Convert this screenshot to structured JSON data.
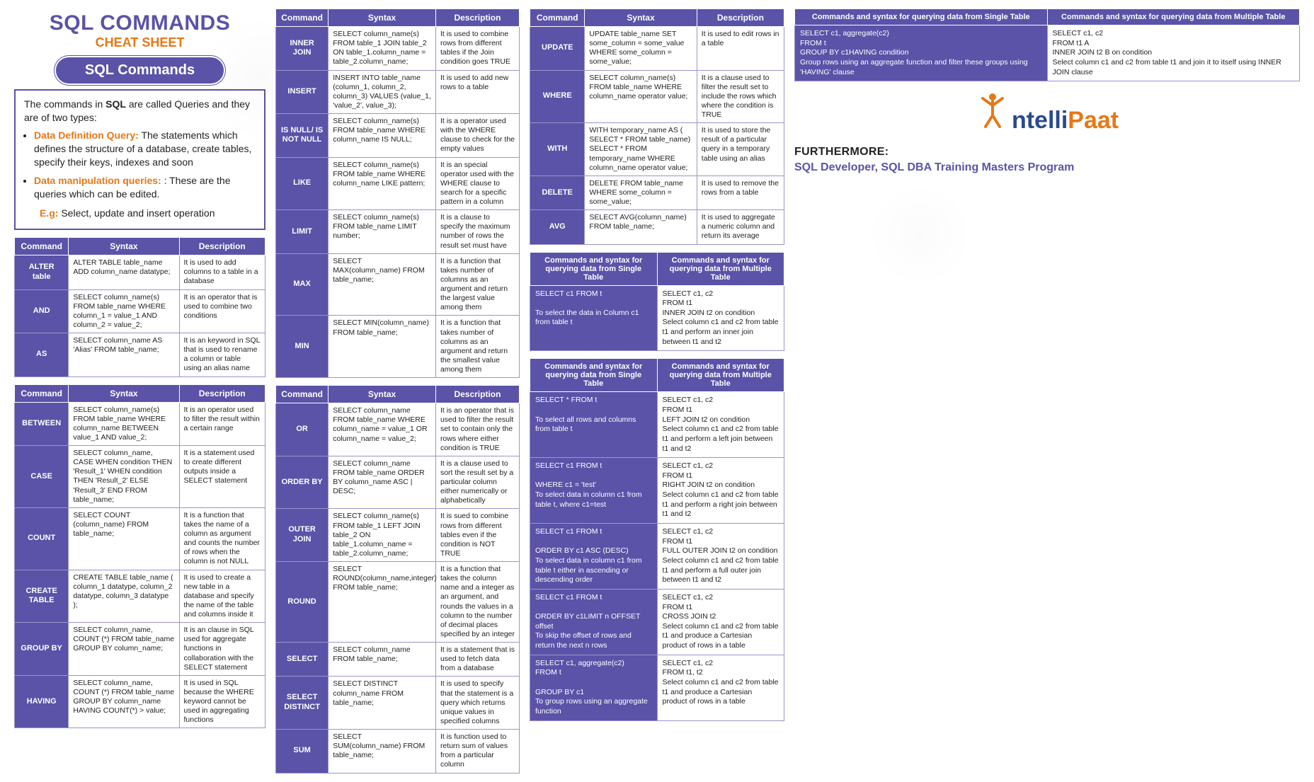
{
  "colors": {
    "purple": "#5a53a8",
    "orange": "#e67817",
    "cell_border": "#9a95cc",
    "background": "#ffffff",
    "text": "#222222",
    "logo_blue": "#2a4a8f"
  },
  "header": {
    "title": "SQL COMMANDS",
    "subtitle": "CHEAT SHEET",
    "pill": "SQL Commands",
    "intro_line": "The commands in SQL are called Queries and they are of two types:",
    "intro_bold_word": "SQL",
    "bullets": [
      {
        "head": "Data Definition Query:",
        "body": "The statements which defines the structure of a database, create tables, specify their keys, indexes and soon"
      },
      {
        "head": "Data manipulation queries:",
        "body": ": These are the queries which can be edited."
      }
    ],
    "eg_label": "E.g:",
    "eg_body": "Select, update and insert operation"
  },
  "cmd_headers": {
    "c1": "Command",
    "c2": "Syntax",
    "c3": "Description"
  },
  "two_col_headers": {
    "single": "Commands and syntax for querying data from Single Table",
    "multiple": "Commands and syntax for querying data from Multiple Table"
  },
  "table_a": [
    {
      "name": "ALTER table",
      "syntax": "ALTER TABLE table_name ADD column_name datatype;",
      "desc": "It is used to add columns to a table in a database"
    },
    {
      "name": "AND",
      "syntax": "SELECT column_name(s) FROM table_name WHERE column_1 = value_1 AND column_2 = value_2;",
      "desc": "It is an operator that is used to combine two conditions"
    },
    {
      "name": "AS",
      "syntax": "SELECT column_name AS 'Alias' FROM table_name;",
      "desc": "It is an keyword in SQL that is used to rename a column or table using an alias name"
    }
  ],
  "table_b": [
    {
      "name": "BETWEEN",
      "syntax": "SELECT column_name(s) FROM table_name WHERE column_name BETWEEN value_1 AND value_2;",
      "desc": "It is an operator used to filter the result within a certain range"
    },
    {
      "name": "CASE",
      "syntax": "SELECT column_name, CASE WHEN condition THEN 'Result_1' WHEN condition THEN 'Result_2' ELSE 'Result_3' END FROM table_name;",
      "desc": "It is a statement used to create different outputs inside a SELECT statement"
    },
    {
      "name": "COUNT",
      "syntax": "SELECT COUNT (column_name) FROM table_name;",
      "desc": "It is a function that takes the name of a column as argument and counts the number of rows when the column is not NULL"
    },
    {
      "name": "CREATE TABLE",
      "syntax": "CREATE TABLE table_name ( column_1 datatype, column_2 datatype, column_3 datatype );",
      "desc": "It is used to create a new table in a database and specify the name of the table and columns inside it"
    },
    {
      "name": "GROUP BY",
      "syntax": "SELECT column_name, COUNT (*) FROM table_name GROUP BY column_name;",
      "desc": "It is an clause in SQL used for aggregate functions in collaboration with the SELECT statement"
    },
    {
      "name": "HAVING",
      "syntax": "SELECT column_name, COUNT (*) FROM table_name GROUP BY column_name HAVING COUNT(*) > value;",
      "desc": "It is used in SQL because the WHERE keyword cannot be used in aggregating functions"
    }
  ],
  "table_c": [
    {
      "name": "INNER JOIN",
      "syntax": "SELECT column_name(s) FROM table_1 JOIN table_2 ON table_1.column_name = table_2.column_name;",
      "desc": "It is used to combine rows from different tables if the Join condition goes TRUE"
    },
    {
      "name": "INSERT",
      "syntax": "INSERT INTO table_name (column_1, column_2, column_3) VALUES (value_1, 'value_2', value_3);",
      "desc": "It is used to add new rows to a table"
    },
    {
      "name": "IS NULL/ IS NOT NULL",
      "syntax": "SELECT column_name(s) FROM table_name WHERE column_name IS NULL;",
      "desc": "It is a operator used with the WHERE clause to check for the empty values"
    },
    {
      "name": "LIKE",
      "syntax": "SELECT column_name(s) FROM table_name WHERE column_name LIKE pattern;",
      "desc": "It is an special operator used with the WHERE clause to search for a specific pattern in a column"
    },
    {
      "name": "LIMIT",
      "syntax": "SELECT column_name(s) FROM table_name LIMIT number;",
      "desc": "It is a clause to specify the maximum number of rows the result set must have"
    },
    {
      "name": "MAX",
      "syntax": "SELECT MAX(column_name) FROM table_name;",
      "desc": "It is a function that takes number of columns as an argument and return the largest value among them"
    },
    {
      "name": "MIN",
      "syntax": "SELECT MIN(column_name) FROM table_name;",
      "desc": "It is a function that takes number of columns as an argument and return the smallest value among them"
    }
  ],
  "table_d": [
    {
      "name": "OR",
      "syntax": "SELECT column_name FROM table_name WHERE column_name = value_1 OR column_name = value_2;",
      "desc": "It is an operator that is used to filter the result set to contain only the rows where either condition is TRUE"
    },
    {
      "name": "ORDER BY",
      "syntax": "SELECT column_name FROM table_name ORDER BY column_name ASC | DESC;",
      "desc": "It is a clause used to sort the result set by a particular column either numerically or alphabetically"
    },
    {
      "name": "OUTER JOIN",
      "syntax": "SELECT column_name(s) FROM table_1 LEFT JOIN table_2 ON table_1.column_name = table_2.column_name;",
      "desc": "It is sued to combine rows from different tables even if the condition is NOT TRUE"
    },
    {
      "name": "ROUND",
      "syntax": "SELECT ROUND(column_name,integer) FROM table_name;",
      "desc": "It is a function that takes the column name and a integer as an argument, and rounds the values in a column to the number of decimal places specified by an integer"
    },
    {
      "name": "SELECT",
      "syntax": "SELECT column_name FROM table_name;",
      "desc": "It is a statement that is used to fetch data from a database"
    },
    {
      "name": "SELECT DISTINCT",
      "syntax": "SELECT DISTINCT column_name FROM table_name;",
      "desc": "It is used to specify that the statement is a query which returns unique values in specified columns"
    },
    {
      "name": "SUM",
      "syntax": "SELECT SUM(column_name) FROM table_name;",
      "desc": "It is function used to return sum of values from a particular column"
    }
  ],
  "table_e": [
    {
      "name": "UPDATE",
      "syntax": "UPDATE table_name SET some_column = some_value WHERE some_column = some_value;",
      "desc": "It is used to edit rows in a table"
    },
    {
      "name": "WHERE",
      "syntax": "SELECT column_name(s) FROM table_name WHERE column_name operator value;",
      "desc": "It is a clause used to filter the result set to include the rows which where the condition is TRUE"
    },
    {
      "name": "WITH",
      "syntax": "WITH temporary_name AS ( SELECT * FROM table_name) SELECT * FROM temporary_name WHERE column_name operator value;",
      "desc": "It is used to store the result of a particular query in a temporary table using an alias"
    },
    {
      "name": "DELETE",
      "syntax": "DELETE FROM table_name WHERE some_column = some_value;",
      "desc": "It is used to remove the rows from a table"
    },
    {
      "name": "AVG",
      "syntax": "SELECT AVG(column_name) FROM table_name;",
      "desc": "It is used to aggregate a numeric column and return its average"
    }
  ],
  "two_col_f": [
    {
      "left": "SELECT c1 FROM t\n\nTo select the data in Column c1 from table t",
      "right": "SELECT c1, c2\nFROM t1\nINNER JOIN t2 on condition\nSelect column c1 and c2 from table t1 and perform an inner join between t1 and t2"
    }
  ],
  "two_col_g": [
    {
      "left": "SELECT * FROM t\n\nTo select all rows and columns from table t",
      "right": "SELECT c1, c2\nFROM t1\nLEFT JOIN t2 on condition\nSelect column c1 and c2 from table t1 and perform a left join between t1 and t2"
    },
    {
      "left": "SELECT c1 FROM t\n\nWHERE c1 = 'test'\nTo select data in column c1 from table t, where c1=test",
      "right": "SELECT c1, c2\nFROM t1\nRIGHT JOIN t2 on condition\nSelect column c1 and c2 from table t1 and perform a right join between t1 and t2"
    },
    {
      "left": "SELECT c1 FROM t\n\nORDER BY c1 ASC (DESC)\nTo select data in column c1 from table t either in ascending or descending order",
      "right": "SELECT c1, c2\nFROM t1\nFULL OUTER JOIN t2 on condition\nSelect column c1 and c2 from table t1 and perform a full outer join between t1 and t2"
    },
    {
      "left": "SELECT c1 FROM t\n\nORDER BY c1LIMIT n OFFSET offset\nTo skip the offset of rows and return the next n rows",
      "right": "SELECT c1, c2\nFROM t1\nCROSS JOIN t2\nSelect column c1 and c2 from table t1 and produce a Cartesian product of rows in a table"
    },
    {
      "left": "SELECT c1, aggregate(c2)\nFROM t\n\nGROUP BY c1\nTo group rows using an aggregate function",
      "right": "SELECT c1, c2\nFROM t1, t2\nSelect column c1 and c2 from table t1 and produce a Cartesian product of rows in a table"
    }
  ],
  "two_col_h": [
    {
      "left": "SELECT c1, aggregate(c2)\nFROM t\nGROUP BY c1HAVING condition\nGroup rows using an aggregate function and filter these groups using 'HAVING' clause",
      "right": "SELECT c1, c2\nFROM t1 A\nINNER JOIN t2 B on condition\nSelect column c1 and c2 from table t1 and join it to itself using INNER JOIN clause"
    }
  ],
  "footer": {
    "logo_text_1": "ntelli",
    "logo_text_2": "Paat",
    "furthermore": "FURTHERMORE:",
    "program": "SQL Developer, SQL DBA Training Masters Program"
  }
}
